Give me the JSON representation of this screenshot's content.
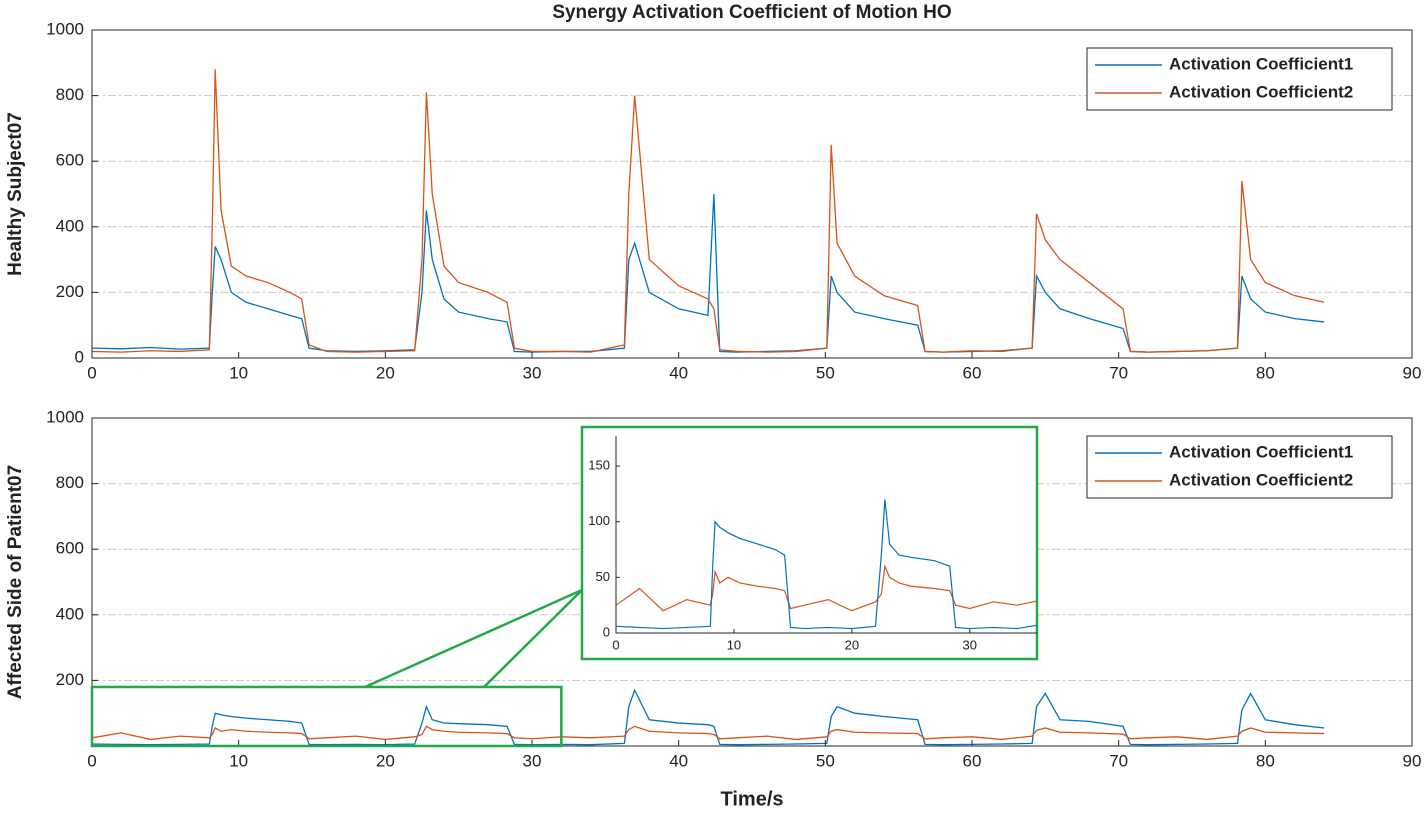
{
  "chart_data": [
    {
      "type": "line",
      "title": "Synergy Activation Coefficient of Motion HO",
      "ylabel": "Healthy Subject07",
      "x": [
        0,
        2,
        4,
        6,
        8,
        8.2,
        8.4,
        8.8,
        9.5,
        10.5,
        12,
        13.5,
        14.3,
        14.8,
        16,
        18,
        20,
        22,
        22.5,
        22.8,
        23.2,
        24,
        25,
        27,
        28.3,
        28.8,
        30,
        32,
        34,
        36.3,
        36.6,
        37,
        38,
        40,
        42,
        42.4,
        42.8,
        44,
        46,
        48,
        50.1,
        50.4,
        50.8,
        52,
        54,
        56.3,
        56.8,
        58,
        60,
        62,
        64.1,
        64.4,
        65,
        66,
        68,
        70.3,
        70.8,
        72,
        74,
        76,
        78.1,
        78.4,
        79,
        80,
        82,
        84
      ],
      "series": [
        {
          "name": "Activation Coefficient1",
          "color": "#0072BD",
          "values": [
            30,
            28,
            32,
            27,
            30,
            200,
            340,
            300,
            200,
            170,
            150,
            130,
            120,
            30,
            22,
            20,
            22,
            25,
            200,
            450,
            300,
            180,
            140,
            120,
            110,
            20,
            18,
            20,
            20,
            30,
            300,
            350,
            200,
            150,
            130,
            500,
            20,
            18,
            20,
            22,
            30,
            250,
            200,
            140,
            120,
            100,
            20,
            18,
            20,
            22,
            30,
            250,
            200,
            150,
            120,
            90,
            20,
            18,
            20,
            22,
            30,
            250,
            180,
            140,
            120,
            110
          ]
        },
        {
          "name": "Activation Coefficient2",
          "color": "#D95319",
          "values": [
            20,
            18,
            22,
            20,
            25,
            400,
            880,
            450,
            280,
            250,
            230,
            200,
            180,
            40,
            20,
            18,
            20,
            22,
            300,
            810,
            500,
            280,
            230,
            200,
            170,
            30,
            20,
            20,
            18,
            40,
            500,
            800,
            300,
            220,
            180,
            150,
            25,
            20,
            18,
            20,
            30,
            650,
            350,
            250,
            190,
            160,
            20,
            18,
            22,
            20,
            30,
            440,
            360,
            300,
            230,
            150,
            20,
            18,
            20,
            22,
            30,
            540,
            300,
            230,
            190,
            170
          ]
        }
      ],
      "xlim": [
        0,
        90
      ],
      "ylim": [
        0,
        1000
      ],
      "xticks": [
        0,
        10,
        20,
        30,
        40,
        50,
        60,
        70,
        80,
        90
      ],
      "yticks": [
        0,
        200,
        400,
        600,
        800,
        1000
      ],
      "grid": true,
      "legend": "upper right"
    },
    {
      "type": "line",
      "ylabel": "Affected Side of Patient07",
      "xlabel": "Time/s",
      "x": [
        0,
        2,
        4,
        6,
        8,
        8.2,
        8.4,
        8.8,
        9.5,
        10.5,
        12,
        13.5,
        14.3,
        14.8,
        16,
        18,
        20,
        22,
        22.5,
        22.8,
        23.2,
        24,
        25,
        27,
        28.3,
        28.8,
        30,
        32,
        34,
        36.3,
        36.6,
        37,
        38,
        40,
        42,
        42.4,
        42.8,
        44,
        46,
        48,
        50.1,
        50.4,
        50.8,
        52,
        54,
        56.3,
        56.8,
        58,
        60,
        62,
        64.1,
        64.4,
        65,
        66,
        68,
        70.3,
        70.8,
        72,
        74,
        76,
        78.1,
        78.4,
        79,
        80,
        82,
        84
      ],
      "series": [
        {
          "name": "Activation Coefficient1",
          "color": "#0072BD",
          "values": [
            6,
            5,
            4,
            5,
            6,
            60,
            100,
            95,
            90,
            85,
            80,
            75,
            70,
            5,
            4,
            5,
            4,
            6,
            70,
            120,
            80,
            70,
            68,
            65,
            60,
            5,
            4,
            5,
            4,
            8,
            120,
            170,
            80,
            70,
            65,
            60,
            5,
            4,
            5,
            6,
            8,
            90,
            120,
            100,
            90,
            80,
            5,
            4,
            5,
            6,
            8,
            120,
            160,
            80,
            75,
            60,
            5,
            4,
            5,
            6,
            8,
            110,
            160,
            80,
            65,
            55
          ]
        },
        {
          "name": "Activation Coefficient2",
          "color": "#D95319",
          "values": [
            25,
            40,
            20,
            30,
            25,
            35,
            55,
            45,
            50,
            45,
            42,
            40,
            38,
            22,
            25,
            30,
            20,
            28,
            35,
            60,
            50,
            45,
            42,
            40,
            38,
            25,
            22,
            28,
            25,
            30,
            50,
            60,
            45,
            40,
            38,
            35,
            22,
            25,
            30,
            20,
            28,
            45,
            50,
            42,
            40,
            38,
            22,
            25,
            28,
            20,
            30,
            48,
            55,
            42,
            40,
            36,
            22,
            25,
            28,
            20,
            30,
            45,
            55,
            42,
            40,
            38
          ]
        }
      ],
      "xlim": [
        0,
        90
      ],
      "ylim": [
        0,
        1000
      ],
      "xticks": [
        0,
        10,
        20,
        30,
        40,
        50,
        60,
        70,
        80,
        90
      ],
      "yticks": [
        200,
        400,
        600,
        800,
        1000
      ],
      "grid": true,
      "legend": "upper right",
      "zoom_region": {
        "xlim": [
          0,
          32
        ],
        "ylim": [
          0,
          180
        ]
      },
      "inset": {
        "xlim": [
          0,
          35.7
        ],
        "ylim": [
          0,
          177
        ],
        "xticks": [
          0,
          10,
          20,
          30
        ],
        "yticks": [
          0,
          50,
          100,
          150
        ],
        "color": "#22a84a"
      }
    }
  ]
}
